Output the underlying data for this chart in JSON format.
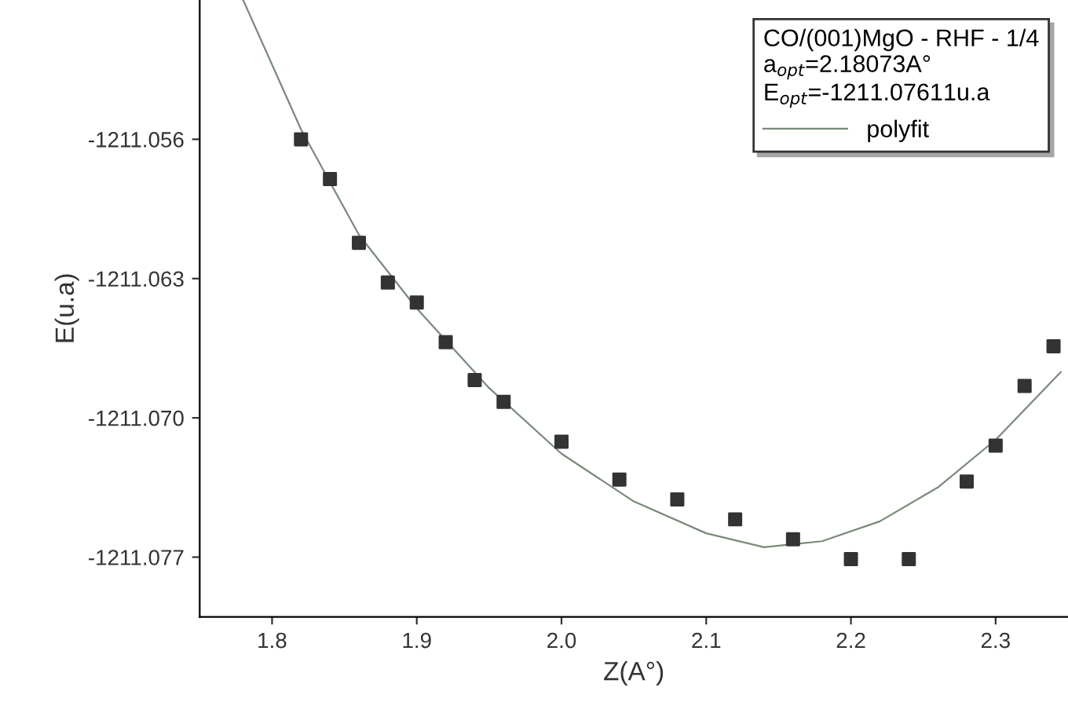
{
  "chart_data": {
    "type": "scatter",
    "xlabel": "Z(A°)",
    "ylabel": "E(u.a)",
    "legend_title": "CO/(001)MgO - RHF - 1/4",
    "annotations": [
      "a$_{opt}$=2.18073A°",
      "E$_{opt}$=-1211.07611u.a"
    ],
    "xlim": [
      1.75,
      2.35
    ],
    "xticks": [
      1.8,
      1.9,
      {
        "value": 2,
        "label": "2.0"
      },
      2.1,
      2.2,
      2.3
    ],
    "ylim": [
      -1211.08,
      -1211.049
    ],
    "yticks": [
      -1211.056,
      -1211.063,
      {
        "value": -1211.07,
        "label": "-1211.070"
      },
      -1211.077
    ],
    "grid": false,
    "legend": "top right",
    "series": [
      {
        "color": "#333333",
        "marker": "square",
        "x": [
          1.82,
          1.84,
          1.86,
          1.88,
          1.9,
          1.92,
          1.94,
          1.96,
          2.0,
          2.04,
          2.08,
          2.12,
          2.16,
          2.2,
          2.24,
          2.28,
          2.3,
          2.32,
          2.34
        ],
        "values": [
          -1211.056,
          -1211.058,
          -1211.0612,
          -1211.0632,
          -1211.0642,
          -1211.0662,
          -1211.0681,
          -1211.0692,
          -1211.0712,
          -1211.0731,
          -1211.0741,
          -1211.0751,
          -1211.0761,
          -1211.0771,
          -1211.0771,
          -1211.0732,
          -1211.0714,
          -1211.0684,
          -1211.0664
        ]
      },
      {
        "type": "line",
        "name": "polyfit",
        "color": "#7a8a7a",
        "line_style": "solid",
        "x": [
          1.78,
          1.82,
          1.86,
          1.9,
          1.95,
          2.0,
          2.05,
          2.1,
          2.14,
          2.18,
          2.22,
          2.26,
          2.3,
          2.345
        ],
        "values": [
          -1211.049,
          -1211.0555,
          -1211.0608,
          -1211.0645,
          -1211.0685,
          -1211.0718,
          -1211.0742,
          -1211.0758,
          -1211.0765,
          -1211.0762,
          -1211.0752,
          -1211.0735,
          -1211.0711,
          -1211.0677
        ]
      }
    ]
  }
}
